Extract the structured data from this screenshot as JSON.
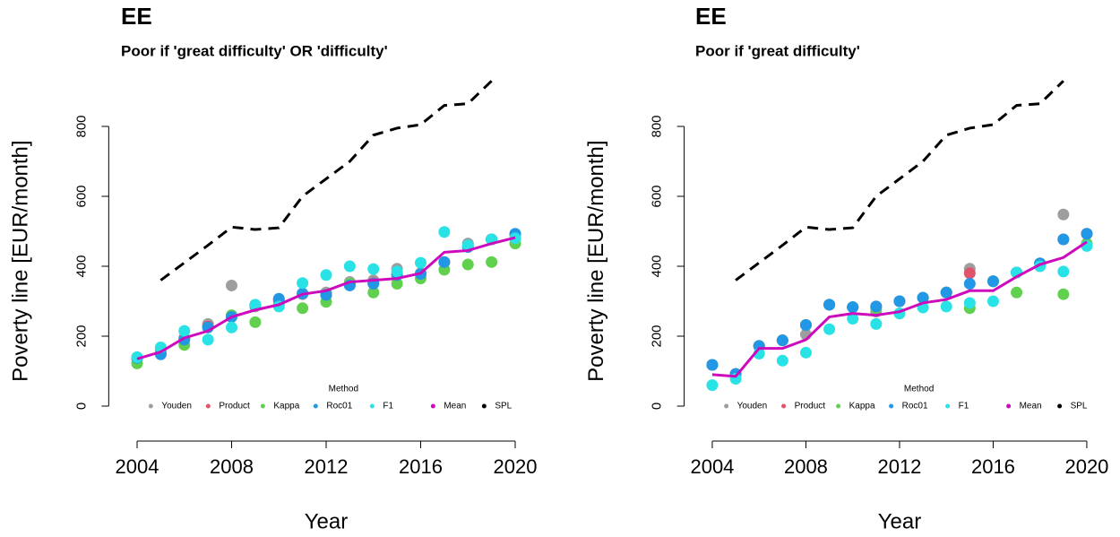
{
  "chart_data": [
    {
      "type": "scatter",
      "title": "EE",
      "subtitle": "Poor if 'great difficulty' OR 'difficulty'",
      "x_label": "Year",
      "y_label": "Poverty line [EUR/month]",
      "legend_title": "Method",
      "xlim": [
        2002.8,
        2021.2
      ],
      "xticks": [
        2004,
        2008,
        2012,
        2016,
        2020
      ],
      "ylim": [
        -100,
        930
      ],
      "yticks": [
        0,
        200,
        400,
        600,
        800
      ],
      "x": [
        2004,
        2005,
        2006,
        2007,
        2008,
        2009,
        2010,
        2011,
        2012,
        2013,
        2014,
        2015,
        2016,
        2017,
        2018,
        2019,
        2020
      ],
      "series": [
        {
          "name": "Youden",
          "color": "#9e9e9e",
          "style": "points",
          "values": [
            135,
            155,
            195,
            235,
            345,
            285,
            300,
            320,
            325,
            355,
            360,
            393,
            380,
            412,
            465,
            477,
            490
          ]
        },
        {
          "name": "Product",
          "color": "#df536b",
          "style": "points",
          "values": [
            138,
            150,
            192,
            228,
            258,
            288,
            305,
            322,
            318,
            347,
            352,
            377,
            378,
            412,
            455,
            477,
            492
          ]
        },
        {
          "name": "Kappa",
          "color": "#61d04f",
          "style": "points",
          "values": [
            122,
            160,
            175,
            225,
            260,
            240,
            290,
            280,
            298,
            350,
            325,
            350,
            365,
            390,
            405,
            412,
            465
          ]
        },
        {
          "name": "Roc01",
          "color": "#2297e6",
          "style": "points",
          "values": [
            138,
            148,
            190,
            225,
            255,
            288,
            307,
            322,
            318,
            345,
            350,
            375,
            378,
            412,
            455,
            477,
            493
          ]
        },
        {
          "name": "F1",
          "color": "#28e2e5",
          "style": "points",
          "values": [
            140,
            168,
            215,
            190,
            225,
            290,
            285,
            352,
            375,
            400,
            392,
            385,
            410,
            498,
            460,
            477,
            480
          ]
        },
        {
          "name": "Mean",
          "color": "#cd0bbc",
          "style": "line",
          "values": [
            135,
            155,
            195,
            215,
            255,
            275,
            290,
            320,
            330,
            355,
            360,
            365,
            380,
            440,
            445,
            465,
            482
          ]
        },
        {
          "name": "SPL",
          "color": "#000000",
          "style": "dashed",
          "values": [
            null,
            360,
            410,
            460,
            512,
            505,
            510,
            600,
            650,
            700,
            775,
            795,
            805,
            860,
            865,
            930,
            null
          ]
        }
      ]
    },
    {
      "type": "scatter",
      "title": "EE",
      "subtitle": "Poor if 'great difficulty'",
      "x_label": "Year",
      "y_label": "Poverty line [EUR/month]",
      "legend_title": "Method",
      "xlim": [
        2002.8,
        2021.2
      ],
      "xticks": [
        2004,
        2008,
        2012,
        2016,
        2020
      ],
      "ylim": [
        -100,
        930
      ],
      "yticks": [
        0,
        200,
        400,
        600,
        800
      ],
      "x": [
        2004,
        2005,
        2006,
        2007,
        2008,
        2009,
        2010,
        2011,
        2012,
        2013,
        2014,
        2015,
        2016,
        2017,
        2018,
        2019,
        2020
      ],
      "series": [
        {
          "name": "Youden",
          "color": "#9e9e9e",
          "style": "points",
          "values": [
            118,
            92,
            172,
            188,
            205,
            290,
            283,
            270,
            300,
            310,
            325,
            393,
            357,
            382,
            408,
            548,
            493
          ]
        },
        {
          "name": "Product",
          "color": "#df536b",
          "style": "points",
          "values": [
            118,
            92,
            172,
            188,
            232,
            290,
            283,
            285,
            300,
            310,
            325,
            380,
            357,
            382,
            408,
            477,
            493
          ]
        },
        {
          "name": "Kappa",
          "color": "#61d04f",
          "style": "points",
          "values": [
            118,
            90,
            172,
            188,
            232,
            290,
            283,
            280,
            265,
            310,
            325,
            280,
            357,
            325,
            408,
            320,
            465
          ]
        },
        {
          "name": "Roc01",
          "color": "#2297e6",
          "style": "points",
          "values": [
            118,
            92,
            172,
            188,
            232,
            290,
            283,
            285,
            300,
            310,
            325,
            350,
            357,
            382,
            408,
            477,
            493
          ]
        },
        {
          "name": "F1",
          "color": "#28e2e5",
          "style": "points",
          "values": [
            60,
            78,
            150,
            130,
            153,
            220,
            250,
            235,
            265,
            282,
            285,
            295,
            300,
            382,
            400,
            385,
            458
          ]
        },
        {
          "name": "Mean",
          "color": "#cd0bbc",
          "style": "line",
          "values": [
            90,
            85,
            165,
            165,
            190,
            255,
            265,
            260,
            270,
            295,
            305,
            330,
            330,
            370,
            405,
            425,
            470
          ]
        },
        {
          "name": "SPL",
          "color": "#000000",
          "style": "dashed",
          "values": [
            null,
            360,
            410,
            460,
            512,
            505,
            510,
            600,
            650,
            700,
            775,
            795,
            805,
            860,
            865,
            930,
            null
          ]
        }
      ]
    }
  ]
}
